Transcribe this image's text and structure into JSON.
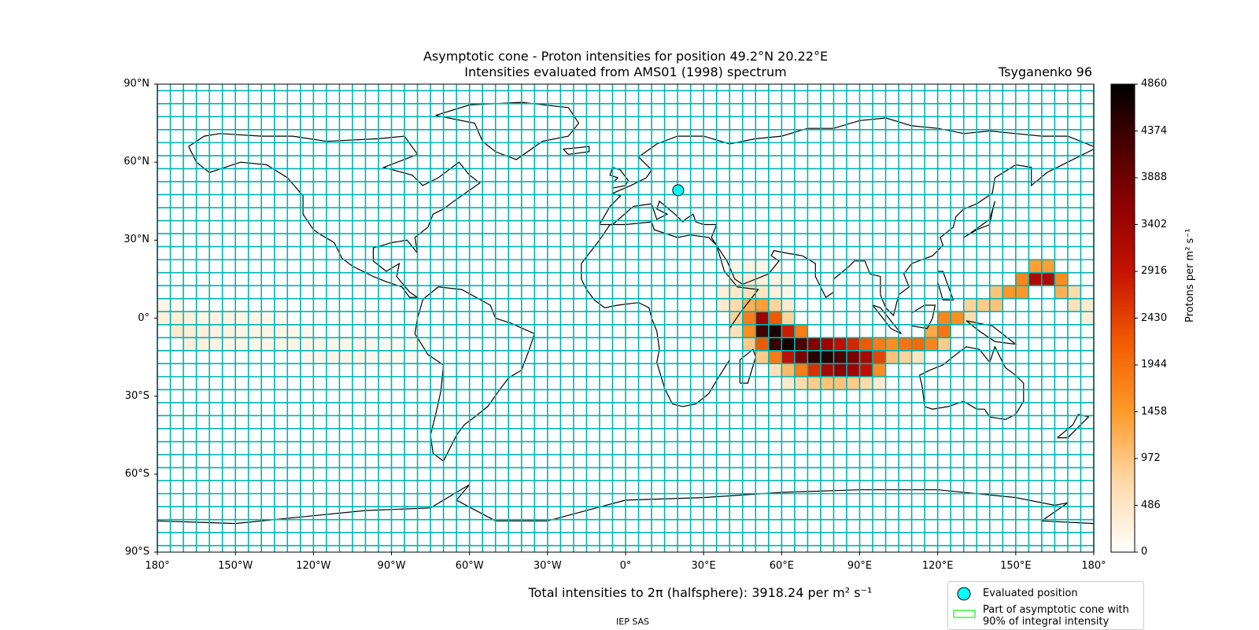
{
  "title": {
    "line1": "Asymptotic cone - Proton intensities for position 49.2°N 20.22°E",
    "line2": "Intensities evaluated from AMS01 (1998) spectrum"
  },
  "model": "Tsyganenko 96",
  "map": {
    "projection": "Plate Carree",
    "lon_range": [
      -180,
      180
    ],
    "lat_range": [
      -90,
      90
    ],
    "grid_color": "#00b3b3",
    "land_outline_color": "#000000",
    "x_ticks": [
      "180°",
      "150°W",
      "120°W",
      "90°W",
      "60°W",
      "30°W",
      "0°",
      "30°E",
      "60°E",
      "90°E",
      "120°E",
      "150°E",
      "180°"
    ],
    "y_ticks": [
      "90°N",
      "60°N",
      "30°N",
      "0°",
      "30°S",
      "60°S",
      "90°S"
    ]
  },
  "evaluated_position": {
    "lat": 49.2,
    "lon": 20.22,
    "color": "#00ffff"
  },
  "colorbar": {
    "label": "Protons per m² s⁻¹",
    "ticks": [
      "4860",
      "4374",
      "3888",
      "3402",
      "2916",
      "2430",
      "1944",
      "1458",
      "972",
      "486",
      "0"
    ],
    "min": 0,
    "max": 4860,
    "colormap": "gist_heat_r"
  },
  "total_text": "Total intensities to 2π (halfsphere): 3918.24 per m² s⁻¹",
  "footer": "IEP SAS",
  "legend": {
    "evaluated_position": "Evaluated position",
    "cone_line1": "Part of asymptotic cone with",
    "cone_line2": "90% of integral intensity",
    "cone_box_color": "#00ff00"
  },
  "chart_data": {
    "type": "heatmap",
    "title": "Asymptotic cone - Proton intensities for position 49.2°N 20.22°E",
    "subtitle": "Intensities evaluated from AMS01 (1998) spectrum",
    "xlabel": "",
    "ylabel": "",
    "xlim": [
      -180,
      180
    ],
    "ylim": [
      -90,
      90
    ],
    "value_range": [
      0,
      4860
    ],
    "cell_size_deg": [
      5,
      5
    ],
    "cells": [
      {
        "lon": 155,
        "lat": 20,
        "v": 1400
      },
      {
        "lon": 160,
        "lat": 20,
        "v": 1400
      },
      {
        "lon": 150,
        "lat": 15,
        "v": 1700
      },
      {
        "lon": 155,
        "lat": 15,
        "v": 3200
      },
      {
        "lon": 160,
        "lat": 15,
        "v": 3200
      },
      {
        "lon": 165,
        "lat": 15,
        "v": 1600
      },
      {
        "lon": 140,
        "lat": 10,
        "v": 1000
      },
      {
        "lon": 145,
        "lat": 10,
        "v": 1500
      },
      {
        "lon": 150,
        "lat": 10,
        "v": 1500
      },
      {
        "lon": 165,
        "lat": 10,
        "v": 1200
      },
      {
        "lon": 170,
        "lat": 10,
        "v": 700
      },
      {
        "lon": 130,
        "lat": 5,
        "v": 800
      },
      {
        "lon": 135,
        "lat": 5,
        "v": 900
      },
      {
        "lon": 140,
        "lat": 5,
        "v": 1000
      },
      {
        "lon": 170,
        "lat": 5,
        "v": 600
      },
      {
        "lon": 175,
        "lat": 5,
        "v": 400
      },
      {
        "lon": 120,
        "lat": 0,
        "v": 1700
      },
      {
        "lon": 125,
        "lat": 0,
        "v": 1600
      },
      {
        "lon": 130,
        "lat": 0,
        "v": 700
      },
      {
        "lon": 175,
        "lat": 0,
        "v": 300
      },
      {
        "lon": 115,
        "lat": -5,
        "v": 1300
      },
      {
        "lon": 120,
        "lat": -5,
        "v": 1900
      },
      {
        "lon": 100,
        "lat": -10,
        "v": 1600
      },
      {
        "lon": 105,
        "lat": -10,
        "v": 1900
      },
      {
        "lon": 110,
        "lat": -10,
        "v": 2000
      },
      {
        "lon": 115,
        "lat": -10,
        "v": 1700
      },
      {
        "lon": 120,
        "lat": -10,
        "v": 900
      },
      {
        "lon": 100,
        "lat": -15,
        "v": 1000
      },
      {
        "lon": 105,
        "lat": -15,
        "v": 800
      },
      {
        "lon": 110,
        "lat": -15,
        "v": 500
      },
      {
        "lon": 40,
        "lat": 20,
        "v": 200
      },
      {
        "lon": 45,
        "lat": 20,
        "v": 250
      },
      {
        "lon": 50,
        "lat": 20,
        "v": 200
      },
      {
        "lon": 55,
        "lat": 20,
        "v": 150
      },
      {
        "lon": 40,
        "lat": 15,
        "v": 300
      },
      {
        "lon": 45,
        "lat": 15,
        "v": 350
      },
      {
        "lon": 50,
        "lat": 15,
        "v": 300
      },
      {
        "lon": 55,
        "lat": 15,
        "v": 250
      },
      {
        "lon": 60,
        "lat": 15,
        "v": 200
      },
      {
        "lon": 35,
        "lat": 10,
        "v": 300
      },
      {
        "lon": 40,
        "lat": 10,
        "v": 450
      },
      {
        "lon": 45,
        "lat": 10,
        "v": 600
      },
      {
        "lon": 50,
        "lat": 10,
        "v": 500
      },
      {
        "lon": 55,
        "lat": 10,
        "v": 300
      },
      {
        "lon": 60,
        "lat": 10,
        "v": 200
      },
      {
        "lon": 35,
        "lat": 5,
        "v": 400
      },
      {
        "lon": 40,
        "lat": 5,
        "v": 700
      },
      {
        "lon": 45,
        "lat": 5,
        "v": 1200
      },
      {
        "lon": 50,
        "lat": 5,
        "v": 1400
      },
      {
        "lon": 55,
        "lat": 5,
        "v": 800
      },
      {
        "lon": 60,
        "lat": 5,
        "v": 400
      },
      {
        "lon": 40,
        "lat": 0,
        "v": 800
      },
      {
        "lon": 45,
        "lat": 0,
        "v": 1800
      },
      {
        "lon": 50,
        "lat": 0,
        "v": 3400
      },
      {
        "lon": 55,
        "lat": 0,
        "v": 2200
      },
      {
        "lon": 60,
        "lat": 0,
        "v": 800
      },
      {
        "lon": 40,
        "lat": -5,
        "v": 600
      },
      {
        "lon": 45,
        "lat": -5,
        "v": 1600
      },
      {
        "lon": 50,
        "lat": -5,
        "v": 4300
      },
      {
        "lon": 55,
        "lat": -5,
        "v": 4600
      },
      {
        "lon": 60,
        "lat": -5,
        "v": 2800
      },
      {
        "lon": 65,
        "lat": -5,
        "v": 1800
      },
      {
        "lon": 45,
        "lat": -10,
        "v": 900
      },
      {
        "lon": 50,
        "lat": -10,
        "v": 2200
      },
      {
        "lon": 55,
        "lat": -10,
        "v": 4400
      },
      {
        "lon": 60,
        "lat": -10,
        "v": 4700
      },
      {
        "lon": 65,
        "lat": -10,
        "v": 4200
      },
      {
        "lon": 70,
        "lat": -10,
        "v": 3700
      },
      {
        "lon": 75,
        "lat": -10,
        "v": 3400
      },
      {
        "lon": 80,
        "lat": -10,
        "v": 3000
      },
      {
        "lon": 85,
        "lat": -10,
        "v": 2700
      },
      {
        "lon": 90,
        "lat": -10,
        "v": 2200
      },
      {
        "lon": 95,
        "lat": -10,
        "v": 1800
      },
      {
        "lon": 50,
        "lat": -15,
        "v": 900
      },
      {
        "lon": 55,
        "lat": -15,
        "v": 1800
      },
      {
        "lon": 60,
        "lat": -15,
        "v": 3000
      },
      {
        "lon": 65,
        "lat": -15,
        "v": 3800
      },
      {
        "lon": 70,
        "lat": -15,
        "v": 4500
      },
      {
        "lon": 75,
        "lat": -15,
        "v": 4600
      },
      {
        "lon": 80,
        "lat": -15,
        "v": 4200
      },
      {
        "lon": 85,
        "lat": -15,
        "v": 3800
      },
      {
        "lon": 90,
        "lat": -15,
        "v": 3300
      },
      {
        "lon": 95,
        "lat": -15,
        "v": 2400
      },
      {
        "lon": 55,
        "lat": -20,
        "v": 600
      },
      {
        "lon": 60,
        "lat": -20,
        "v": 1100
      },
      {
        "lon": 65,
        "lat": -20,
        "v": 1800
      },
      {
        "lon": 70,
        "lat": -20,
        "v": 2600
      },
      {
        "lon": 75,
        "lat": -20,
        "v": 3300
      },
      {
        "lon": 80,
        "lat": -20,
        "v": 3600
      },
      {
        "lon": 85,
        "lat": -20,
        "v": 3400
      },
      {
        "lon": 90,
        "lat": -20,
        "v": 3000
      },
      {
        "lon": 95,
        "lat": -20,
        "v": 1600
      },
      {
        "lon": 60,
        "lat": -25,
        "v": 400
      },
      {
        "lon": 65,
        "lat": -25,
        "v": 700
      },
      {
        "lon": 70,
        "lat": -25,
        "v": 900
      },
      {
        "lon": 75,
        "lat": -25,
        "v": 1000
      },
      {
        "lon": 80,
        "lat": -25,
        "v": 1000
      },
      {
        "lon": 85,
        "lat": -25,
        "v": 900
      },
      {
        "lon": 90,
        "lat": -25,
        "v": 700
      },
      {
        "lon": 95,
        "lat": -25,
        "v": 400
      },
      {
        "lon": -180,
        "lat": 5,
        "v": 200
      },
      {
        "lon": -175,
        "lat": 5,
        "v": 150
      },
      {
        "lon": -180,
        "lat": 0,
        "v": 300
      },
      {
        "lon": -175,
        "lat": 0,
        "v": 350
      },
      {
        "lon": -170,
        "lat": 0,
        "v": 300
      },
      {
        "lon": -165,
        "lat": 0,
        "v": 200
      },
      {
        "lon": -160,
        "lat": 0,
        "v": 250
      },
      {
        "lon": -155,
        "lat": 0,
        "v": 250
      },
      {
        "lon": -150,
        "lat": 0,
        "v": 200
      },
      {
        "lon": -145,
        "lat": 0,
        "v": 200
      },
      {
        "lon": -140,
        "lat": 0,
        "v": 180
      },
      {
        "lon": -135,
        "lat": 0,
        "v": 150
      },
      {
        "lon": -175,
        "lat": -5,
        "v": 400
      },
      {
        "lon": -170,
        "lat": -5,
        "v": 350
      },
      {
        "lon": -165,
        "lat": -5,
        "v": 300
      },
      {
        "lon": -160,
        "lat": -5,
        "v": 250
      },
      {
        "lon": -155,
        "lat": -5,
        "v": 250
      },
      {
        "lon": -150,
        "lat": -5,
        "v": 220
      },
      {
        "lon": -145,
        "lat": -5,
        "v": 220
      },
      {
        "lon": -140,
        "lat": -5,
        "v": 200
      },
      {
        "lon": -135,
        "lat": -5,
        "v": 200
      },
      {
        "lon": -130,
        "lat": -5,
        "v": 180
      },
      {
        "lon": -125,
        "lat": -5,
        "v": 150
      },
      {
        "lon": -170,
        "lat": -10,
        "v": 300
      },
      {
        "lon": -165,
        "lat": -10,
        "v": 300
      },
      {
        "lon": -160,
        "lat": -10,
        "v": 250
      },
      {
        "lon": -155,
        "lat": -10,
        "v": 200
      },
      {
        "lon": -150,
        "lat": -10,
        "v": 200
      },
      {
        "lon": -145,
        "lat": -10,
        "v": 200
      },
      {
        "lon": -140,
        "lat": -10,
        "v": 200
      },
      {
        "lon": -135,
        "lat": -10,
        "v": 200
      },
      {
        "lon": -130,
        "lat": -10,
        "v": 200
      },
      {
        "lon": -125,
        "lat": -10,
        "v": 200
      },
      {
        "lon": -120,
        "lat": -10,
        "v": 200
      },
      {
        "lon": -115,
        "lat": -10,
        "v": 200
      },
      {
        "lon": -110,
        "lat": -10,
        "v": 200
      },
      {
        "lon": -105,
        "lat": -10,
        "v": 180
      },
      {
        "lon": -100,
        "lat": -10,
        "v": 150
      },
      {
        "lon": -95,
        "lat": -10,
        "v": 150
      },
      {
        "lon": -90,
        "lat": -10,
        "v": 120
      },
      {
        "lon": -85,
        "lat": -10,
        "v": 120
      },
      {
        "lon": -80,
        "lat": -10,
        "v": 100
      },
      {
        "lon": -125,
        "lat": -15,
        "v": 150
      },
      {
        "lon": -120,
        "lat": -15,
        "v": 180
      },
      {
        "lon": -115,
        "lat": -15,
        "v": 200
      },
      {
        "lon": -110,
        "lat": -15,
        "v": 200
      },
      {
        "lon": -105,
        "lat": -15,
        "v": 180
      },
      {
        "lon": -100,
        "lat": -15,
        "v": 150
      },
      {
        "lon": -95,
        "lat": -15,
        "v": 150
      },
      {
        "lon": -90,
        "lat": -15,
        "v": 130
      },
      {
        "lon": -85,
        "lat": -15,
        "v": 110
      }
    ]
  }
}
